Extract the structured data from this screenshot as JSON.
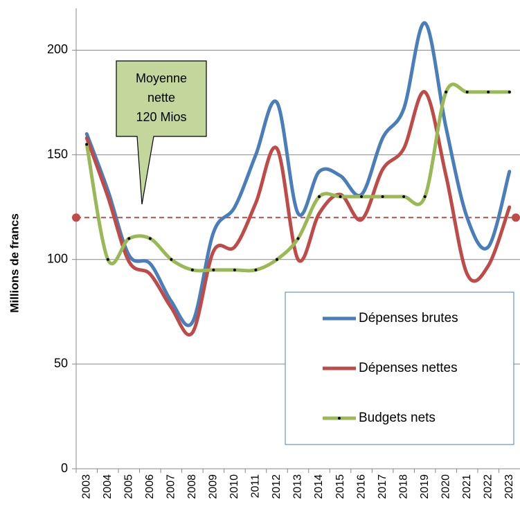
{
  "chart_data": {
    "type": "line",
    "y_label": "Millions de francs",
    "categories": [
      "2003",
      "2004",
      "2005",
      "2006",
      "2007",
      "2008",
      "2009",
      "2010",
      "2011",
      "2012",
      "2013",
      "2014",
      "2015",
      "2016",
      "2017",
      "2018",
      "2019",
      "2020",
      "2021",
      "2022",
      "2023"
    ],
    "series": [
      {
        "name": "Dépenses brutes",
        "color": "#4a7ebb",
        "values": [
          160,
          133,
          102,
          98,
          80,
          70,
          113,
          125,
          150,
          175,
          122,
          142,
          140,
          131,
          158,
          172,
          213,
          163,
          120,
          106,
          142
        ]
      },
      {
        "name": "Dépenses nettes",
        "color": "#be4b48",
        "values": [
          158,
          130,
          99,
          93,
          77,
          65,
          104,
          106,
          127,
          153,
          100,
          122,
          131,
          119,
          143,
          153,
          180,
          140,
          93,
          97,
          125
        ]
      },
      {
        "name": "Budgets nets",
        "color": "#98b954",
        "markers": true,
        "values": [
          155,
          100,
          110,
          110,
          100,
          95,
          95,
          95,
          95,
          100,
          110,
          130,
          130,
          130,
          130,
          130,
          130,
          180,
          180,
          180,
          180
        ]
      }
    ],
    "mean": {
      "value": 120,
      "color": "#be4b48"
    },
    "annotation": [
      "Moyenne",
      "nette",
      "120 Mios"
    ],
    "ylim": [
      0,
      220
    ],
    "yticks": [
      0,
      50,
      100,
      150,
      200
    ],
    "grid": true
  }
}
